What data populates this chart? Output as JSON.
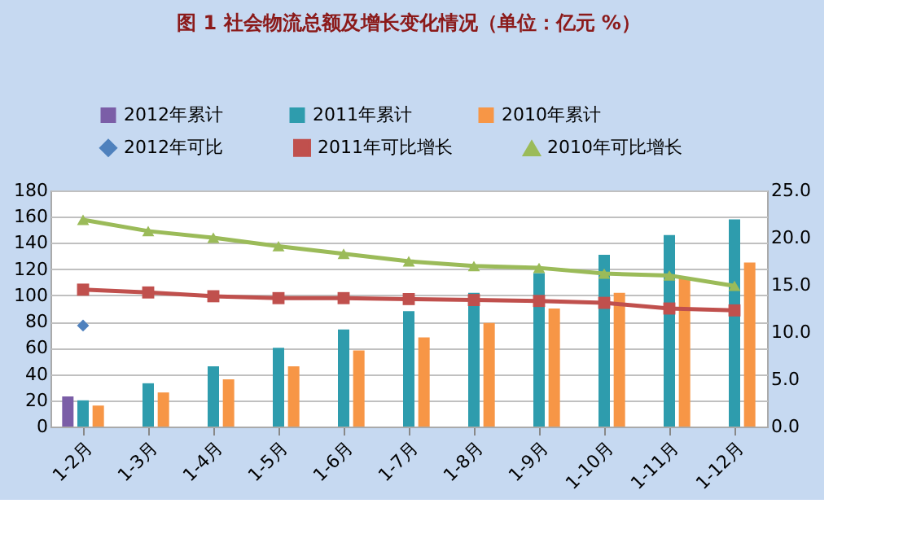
{
  "chart_data": {
    "type": "bar",
    "title": "图 1 社会物流总额及增长变化情况（单位：亿元 %）",
    "categories": [
      "1-2月",
      "1-3月",
      "1-4月",
      "1-5月",
      "1-6月",
      "1-7月",
      "1-8月",
      "1-9月",
      "1-10月",
      "1-11月",
      "1-12月"
    ],
    "series": [
      {
        "name": "2012年累计",
        "color": "#7b5ea7",
        "values": [
          23,
          null,
          null,
          null,
          null,
          null,
          null,
          null,
          null,
          null,
          null
        ]
      },
      {
        "name": "2011年累计",
        "color": "#2e9cad",
        "values": [
          20,
          33,
          46,
          60,
          74,
          88,
          102,
          117,
          131,
          146,
          158
        ]
      },
      {
        "name": "2010年累计",
        "color": "#f79646",
        "values": [
          16,
          26,
          36,
          46,
          58,
          68,
          79,
          90,
          102,
          113,
          125
        ]
      },
      {
        "name": "2012年可比",
        "type": "line",
        "axis": "y2",
        "marker": "diamond",
        "color": "#4f81bd",
        "values": [
          10.7,
          null,
          null,
          null,
          null,
          null,
          null,
          null,
          null,
          null,
          null
        ]
      },
      {
        "name": "2011年可比增长",
        "type": "line",
        "axis": "y2",
        "marker": "square",
        "color": "#c0504d",
        "values": [
          14.5,
          14.2,
          13.8,
          13.6,
          13.6,
          13.5,
          13.4,
          13.3,
          13.1,
          12.5,
          12.3
        ]
      },
      {
        "name": "2010年可比增长",
        "type": "line",
        "axis": "y2",
        "marker": "triangle",
        "color": "#9bbb59",
        "values": [
          21.9,
          20.7,
          20.0,
          19.1,
          18.3,
          17.5,
          17.0,
          16.8,
          16.2,
          16.0,
          14.9
        ]
      }
    ],
    "ylim": [
      0,
      180
    ],
    "yticks": [
      0,
      20,
      40,
      60,
      80,
      100,
      120,
      140,
      160,
      180
    ],
    "y2lim": [
      0,
      25
    ],
    "y2ticks": [
      {
        "value": 0,
        "label": "0.0"
      },
      {
        "value": 5,
        "label": "5.0"
      },
      {
        "value": 10,
        "label": "10.0"
      },
      {
        "value": 15,
        "label": "15.0"
      },
      {
        "value": 20,
        "label": "20.0"
      },
      {
        "value": 25,
        "label": "25.0"
      }
    ],
    "grid": "y",
    "legend": "top"
  }
}
